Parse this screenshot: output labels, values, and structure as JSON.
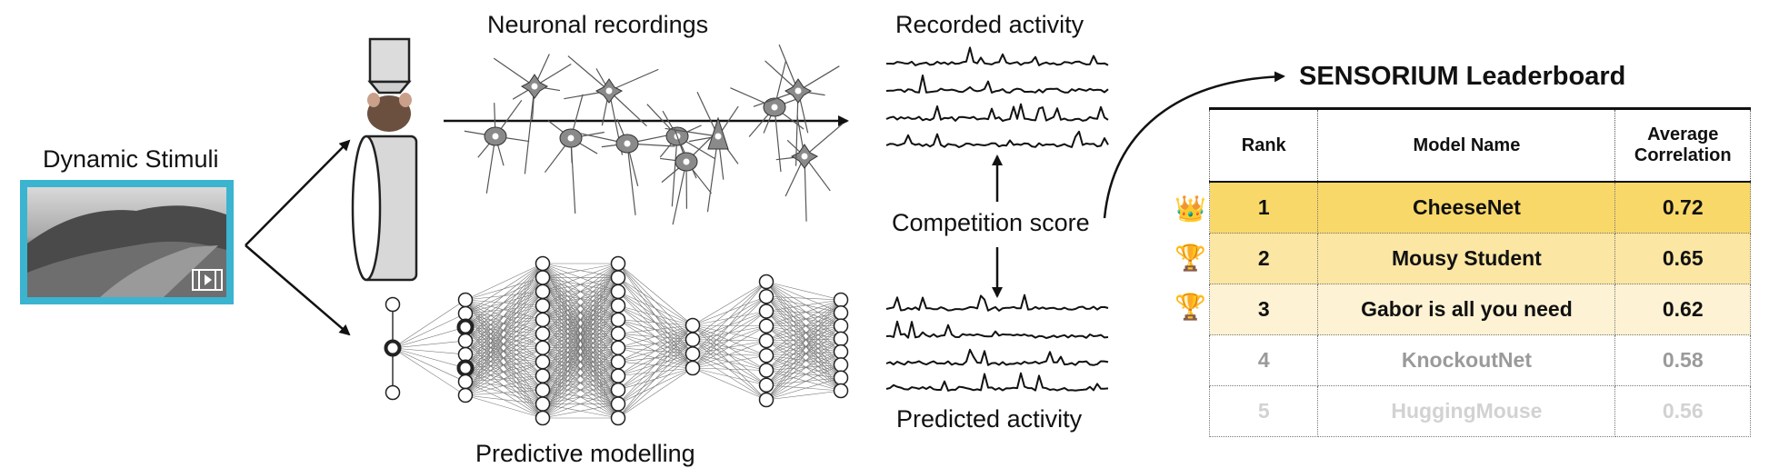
{
  "labels": {
    "dynamic_stimuli": "Dynamic Stimuli",
    "neuronal_recordings": "Neuronal recordings",
    "recorded_activity": "Recorded activity",
    "competition_score": "Competition score",
    "predicted_activity": "Predicted activity",
    "predictive_modelling": "Predictive modelling"
  },
  "leaderboard": {
    "title": "SENSORIUM Leaderboard",
    "headers": {
      "rank": "Rank",
      "model": "Model Name",
      "score_line1": "Average",
      "score_line2": "Correlation"
    },
    "rows": [
      {
        "rank": "1",
        "model": "CheeseNet",
        "score": "0.72",
        "bg": "#f9d86a",
        "color": "#111111",
        "medal": "crown-icon",
        "glyph": "👑"
      },
      {
        "rank": "2",
        "model": "Mousy Student",
        "score": "0.65",
        "bg": "#fbe6a3",
        "color": "#111111",
        "medal": "trophy-icon",
        "glyph": "🏆"
      },
      {
        "rank": "3",
        "model": "Gabor is all you need",
        "score": "0.62",
        "bg": "#fdf2d3",
        "color": "#111111",
        "medal": "trophy-icon",
        "glyph": "🏆"
      },
      {
        "rank": "4",
        "model": "KnockoutNet",
        "score": "0.58",
        "bg": "#ffffff",
        "color": "#9a9a9a",
        "medal": "",
        "glyph": ""
      },
      {
        "rank": "5",
        "model": "HuggingMouse",
        "score": "0.56",
        "bg": "#ffffff",
        "color": "#d2d2d2",
        "medal": "",
        "glyph": ""
      }
    ]
  },
  "colors": {
    "stimulus_frame": "#3bb4d0",
    "accent_gold": "#f9d86a"
  }
}
